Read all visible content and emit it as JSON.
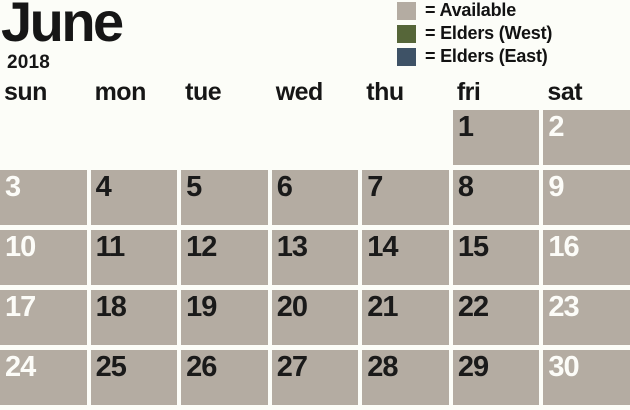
{
  "title": {
    "month": "June",
    "year": "2018"
  },
  "legend": {
    "items": [
      {
        "key": "available",
        "color": "#b4aca2",
        "label": "= Available"
      },
      {
        "key": "elders-west",
        "color": "#566639",
        "label": "= Elders (West)"
      },
      {
        "key": "elders-east",
        "color": "#3e5266",
        "label": "= Elders (East)"
      }
    ]
  },
  "weekdays": [
    "sun",
    "mon",
    "tue",
    "wed",
    "thu",
    "fri",
    "sat"
  ],
  "calendar": {
    "weeks": [
      [
        "",
        "",
        "",
        "",
        "",
        "1",
        "2"
      ],
      [
        "3",
        "4",
        "5",
        "6",
        "7",
        "8",
        "9"
      ],
      [
        "10",
        "11",
        "12",
        "13",
        "14",
        "15",
        "16"
      ],
      [
        "17",
        "18",
        "19",
        "20",
        "21",
        "22",
        "23"
      ],
      [
        "24",
        "25",
        "26",
        "27",
        "28",
        "29",
        "30"
      ]
    ],
    "all_days_status": "Available"
  },
  "colors": {
    "background": "#fcfdf8",
    "available": "#b4aca2",
    "elders_west": "#566639",
    "elders_east": "#3e5266",
    "weekday_number": "#1a1a1a",
    "weekend_number": "#fcfcf8"
  }
}
